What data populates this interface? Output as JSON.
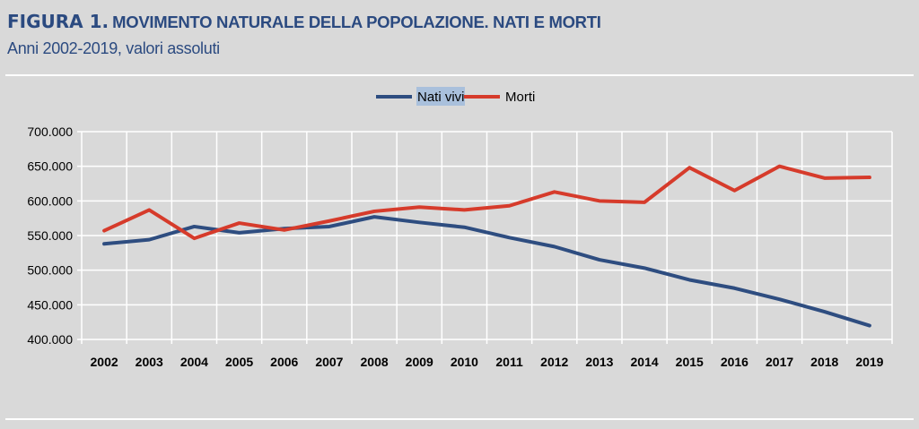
{
  "header": {
    "figure_label": "FIGURA 1.",
    "title": "MOVIMENTO NATURALE DELLA POPOLAZIONE. NATI E MORTI",
    "subtitle": "Anni 2002-2019, valori assoluti"
  },
  "chart_data": {
    "type": "line",
    "title": "MOVIMENTO NATURALE DELLA POPOLAZIONE. NATI E MORTI",
    "subtitle": "Anni 2002-2019, valori assoluti",
    "xlabel": "",
    "ylabel": "",
    "categories": [
      "2002",
      "2003",
      "2004",
      "2005",
      "2006",
      "2007",
      "2008",
      "2009",
      "2010",
      "2011",
      "2012",
      "2013",
      "2014",
      "2015",
      "2016",
      "2017",
      "2018",
      "2019"
    ],
    "ylim": [
      400000,
      700000
    ],
    "yticks": [
      400000,
      450000,
      500000,
      550000,
      600000,
      650000,
      700000
    ],
    "ytick_labels": [
      "400.000",
      "450.000",
      "500.000",
      "550.000",
      "600.000",
      "650.000",
      "700.000"
    ],
    "grid": true,
    "legend_position": "top-center",
    "series": [
      {
        "name": "Nati vivi",
        "color": "#2e4d80",
        "values": [
          538000,
          544000,
          563000,
          554000,
          560000,
          563000,
          577000,
          569000,
          562000,
          547000,
          534000,
          515000,
          503000,
          486000,
          474000,
          458000,
          440000,
          420000
        ]
      },
      {
        "name": "Morti",
        "color": "#d63b2b",
        "values": [
          557000,
          587000,
          546000,
          568000,
          558000,
          571000,
          585000,
          591000,
          587000,
          593000,
          613000,
          600000,
          598000,
          648000,
          615000,
          650000,
          633000,
          634000
        ]
      }
    ]
  }
}
